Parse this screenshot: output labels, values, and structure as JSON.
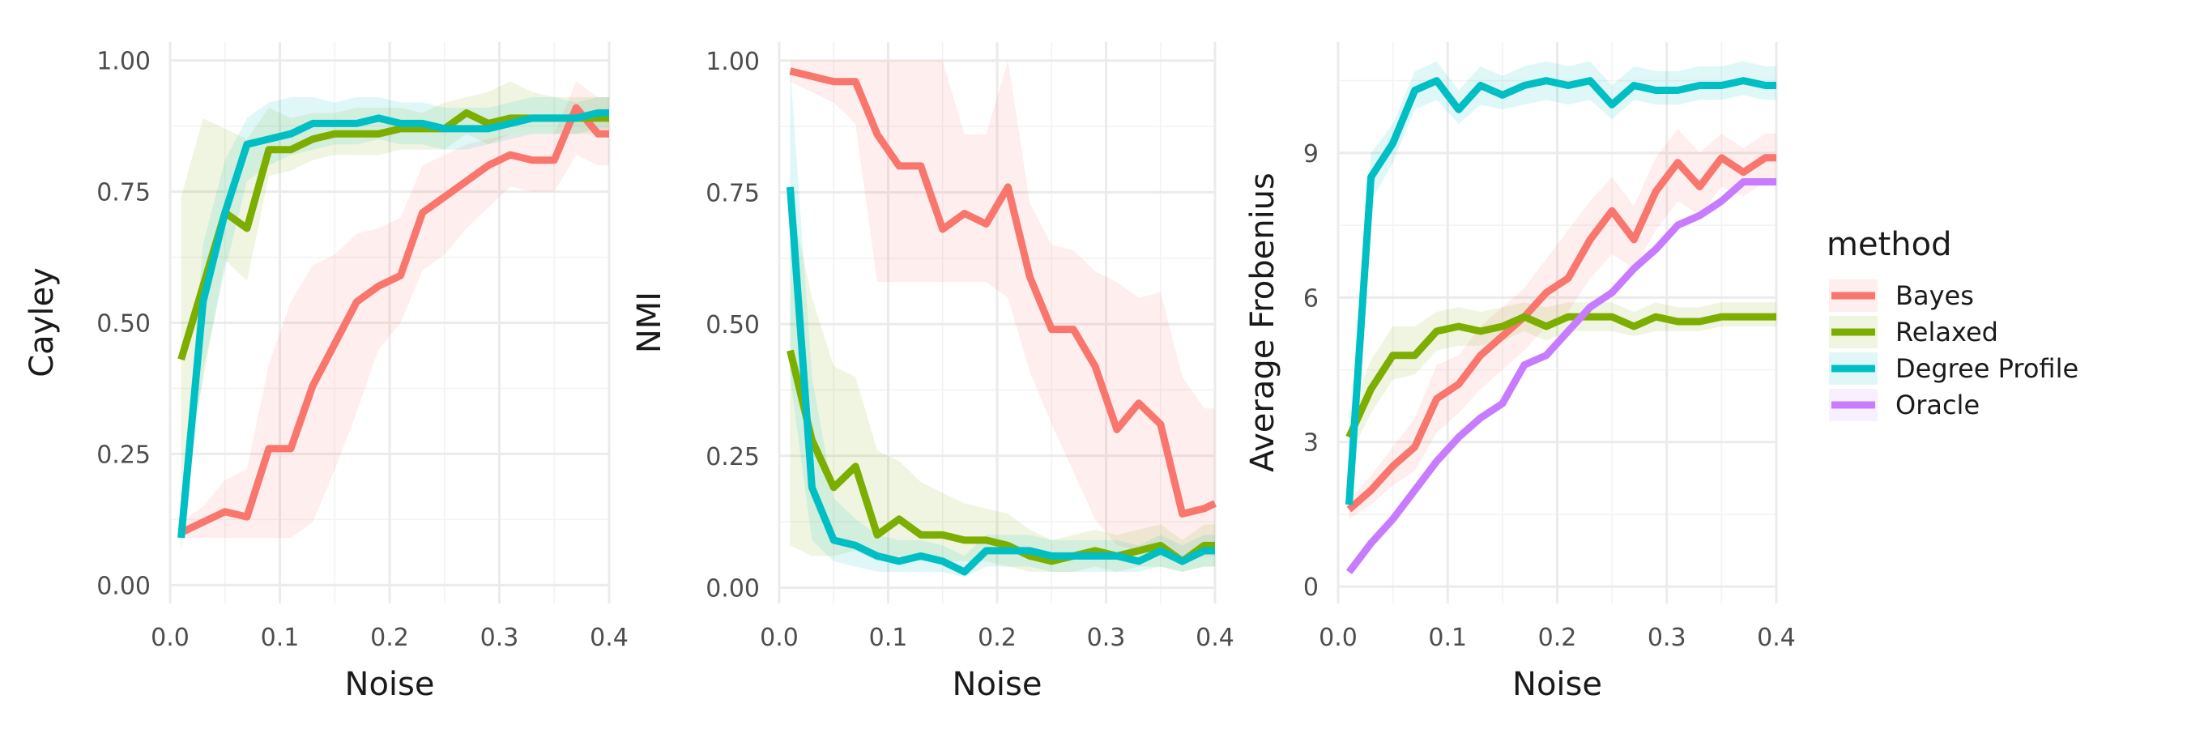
{
  "legend": {
    "title": "method",
    "entries": [
      {
        "name": "Bayes",
        "color": "#F8766D"
      },
      {
        "name": "Relaxed",
        "color": "#7CAE00"
      },
      {
        "name": "Degree Profile",
        "color": "#00BFC4"
      },
      {
        "name": "Oracle",
        "color": "#C77CFF"
      }
    ]
  },
  "chart_data": [
    {
      "type": "line",
      "title": "",
      "xlabel": "Noise",
      "ylabel": "Cayley",
      "xlim": [
        0,
        0.4
      ],
      "ylim": [
        -0.035,
        1.035
      ],
      "xticks": [
        0,
        0.1,
        0.2,
        0.3,
        0.4
      ],
      "xtick_labels": [
        "0.0",
        "0.1",
        "0.2",
        "0.3",
        "0.4"
      ],
      "yticks": [
        0,
        0.25,
        0.5,
        0.75,
        1.0
      ],
      "ytick_labels": [
        "0.00",
        "0.25",
        "0.50",
        "0.75",
        "1.00"
      ],
      "x": [
        0.01,
        0.03,
        0.05,
        0.07,
        0.09,
        0.11,
        0.13,
        0.15,
        0.17,
        0.19,
        0.21,
        0.23,
        0.25,
        0.27,
        0.29,
        0.31,
        0.33,
        0.35,
        0.37,
        0.39,
        0.4
      ],
      "series": [
        {
          "name": "Bayes",
          "color": "#F8766D",
          "values": [
            0.1,
            0.12,
            0.14,
            0.13,
            0.26,
            0.26,
            0.38,
            0.46,
            0.54,
            0.57,
            0.59,
            0.71,
            0.74,
            0.77,
            0.8,
            0.82,
            0.81,
            0.81,
            0.91,
            0.86,
            0.86
          ],
          "lower": [
            0.09,
            0.09,
            0.09,
            0.09,
            0.09,
            0.09,
            0.12,
            0.22,
            0.33,
            0.45,
            0.5,
            0.6,
            0.63,
            0.68,
            0.72,
            0.76,
            0.75,
            0.75,
            0.82,
            0.8,
            0.8
          ],
          "upper": [
            0.12,
            0.15,
            0.2,
            0.22,
            0.42,
            0.54,
            0.61,
            0.63,
            0.67,
            0.68,
            0.7,
            0.8,
            0.82,
            0.84,
            0.85,
            0.86,
            0.86,
            0.86,
            0.96,
            0.93,
            0.93
          ]
        },
        {
          "name": "Relaxed",
          "color": "#7CAE00",
          "values": [
            0.43,
            0.57,
            0.71,
            0.68,
            0.83,
            0.83,
            0.85,
            0.86,
            0.86,
            0.86,
            0.87,
            0.87,
            0.87,
            0.9,
            0.88,
            0.89,
            0.89,
            0.89,
            0.89,
            0.89,
            0.89
          ],
          "lower": [
            0.17,
            0.39,
            0.62,
            0.58,
            0.78,
            0.79,
            0.81,
            0.82,
            0.82,
            0.82,
            0.83,
            0.83,
            0.83,
            0.86,
            0.84,
            0.86,
            0.86,
            0.86,
            0.86,
            0.86,
            0.86
          ],
          "upper": [
            0.74,
            0.89,
            0.87,
            0.85,
            0.91,
            0.89,
            0.9,
            0.9,
            0.91,
            0.91,
            0.91,
            0.9,
            0.92,
            0.93,
            0.94,
            0.96,
            0.94,
            0.93,
            0.93,
            0.93,
            0.93
          ]
        },
        {
          "name": "Degree Profile",
          "color": "#00BFC4",
          "values": [
            0.09,
            0.54,
            0.71,
            0.84,
            0.85,
            0.86,
            0.88,
            0.88,
            0.88,
            0.89,
            0.88,
            0.88,
            0.87,
            0.87,
            0.87,
            0.88,
            0.89,
            0.89,
            0.89,
            0.9,
            0.9
          ],
          "lower": [
            0.06,
            0.41,
            0.6,
            0.77,
            0.8,
            0.82,
            0.83,
            0.84,
            0.84,
            0.85,
            0.84,
            0.84,
            0.83,
            0.83,
            0.84,
            0.85,
            0.86,
            0.86,
            0.86,
            0.87,
            0.87
          ],
          "upper": [
            0.14,
            0.65,
            0.81,
            0.89,
            0.92,
            0.93,
            0.93,
            0.92,
            0.93,
            0.93,
            0.92,
            0.92,
            0.91,
            0.91,
            0.91,
            0.92,
            0.93,
            0.93,
            0.92,
            0.93,
            0.93
          ]
        }
      ]
    },
    {
      "type": "line",
      "title": "",
      "xlabel": "Noise",
      "ylabel": "NMI",
      "xlim": [
        0,
        0.4
      ],
      "ylim": [
        -0.03,
        1.035
      ],
      "xticks": [
        0,
        0.1,
        0.2,
        0.3,
        0.4
      ],
      "xtick_labels": [
        "0.0",
        "0.1",
        "0.2",
        "0.3",
        "0.4"
      ],
      "yticks": [
        0,
        0.25,
        0.5,
        0.75,
        1.0
      ],
      "ytick_labels": [
        "0.00",
        "0.25",
        "0.50",
        "0.75",
        "1.00"
      ],
      "x": [
        0.01,
        0.03,
        0.05,
        0.07,
        0.09,
        0.11,
        0.13,
        0.15,
        0.17,
        0.19,
        0.21,
        0.23,
        0.25,
        0.27,
        0.29,
        0.31,
        0.33,
        0.35,
        0.37,
        0.39,
        0.4
      ],
      "series": [
        {
          "name": "Bayes",
          "color": "#F8766D",
          "values": [
            0.98,
            0.97,
            0.96,
            0.96,
            0.86,
            0.8,
            0.8,
            0.68,
            0.71,
            0.69,
            0.76,
            0.59,
            0.49,
            0.49,
            0.42,
            0.3,
            0.35,
            0.31,
            0.14,
            0.15,
            0.16
          ],
          "lower": [
            0.96,
            0.94,
            0.92,
            0.88,
            0.58,
            0.58,
            0.58,
            0.58,
            0.58,
            0.58,
            0.55,
            0.41,
            0.31,
            0.22,
            0.13,
            0.08,
            0.07,
            0.06,
            0.05,
            0.06,
            0.06
          ],
          "upper": [
            1.0,
            1.0,
            1.0,
            1.0,
            1.0,
            1.0,
            1.0,
            1.0,
            0.86,
            0.86,
            1.0,
            0.73,
            0.65,
            0.64,
            0.6,
            0.58,
            0.55,
            0.56,
            0.4,
            0.34,
            0.34
          ]
        },
        {
          "name": "Relaxed",
          "color": "#7CAE00",
          "values": [
            0.45,
            0.28,
            0.19,
            0.23,
            0.1,
            0.13,
            0.1,
            0.1,
            0.09,
            0.09,
            0.08,
            0.06,
            0.05,
            0.06,
            0.07,
            0.06,
            0.07,
            0.08,
            0.05,
            0.08,
            0.08
          ],
          "lower": [
            0.08,
            0.06,
            0.06,
            0.07,
            0.05,
            0.06,
            0.05,
            0.05,
            0.05,
            0.05,
            0.04,
            0.03,
            0.03,
            0.03,
            0.04,
            0.03,
            0.04,
            0.04,
            0.03,
            0.04,
            0.04
          ],
          "upper": [
            0.74,
            0.55,
            0.42,
            0.4,
            0.26,
            0.24,
            0.2,
            0.18,
            0.16,
            0.15,
            0.14,
            0.11,
            0.09,
            0.1,
            0.11,
            0.1,
            0.11,
            0.12,
            0.09,
            0.12,
            0.12
          ]
        },
        {
          "name": "Degree Profile",
          "color": "#00BFC4",
          "values": [
            0.76,
            0.19,
            0.09,
            0.08,
            0.06,
            0.05,
            0.06,
            0.05,
            0.03,
            0.07,
            0.07,
            0.07,
            0.06,
            0.06,
            0.06,
            0.06,
            0.05,
            0.07,
            0.05,
            0.07,
            0.07
          ],
          "lower": [
            0.4,
            0.09,
            0.05,
            0.04,
            0.03,
            0.03,
            0.03,
            0.03,
            0.02,
            0.04,
            0.04,
            0.04,
            0.03,
            0.03,
            0.03,
            0.03,
            0.03,
            0.04,
            0.03,
            0.04,
            0.04
          ],
          "upper": [
            0.99,
            0.4,
            0.17,
            0.13,
            0.1,
            0.09,
            0.09,
            0.08,
            0.06,
            0.1,
            0.1,
            0.1,
            0.09,
            0.09,
            0.09,
            0.09,
            0.08,
            0.1,
            0.08,
            0.1,
            0.1
          ]
        }
      ]
    },
    {
      "type": "line",
      "title": "",
      "xlabel": "Noise",
      "ylabel": "Average Frobenius",
      "xlim": [
        0,
        0.4
      ],
      "ylim": [
        -0.35,
        11.3
      ],
      "xticks": [
        0,
        0.1,
        0.2,
        0.3,
        0.4
      ],
      "xtick_labels": [
        "0.0",
        "0.1",
        "0.2",
        "0.3",
        "0.4"
      ],
      "yticks": [
        0,
        3,
        6,
        9
      ],
      "ytick_labels": [
        "0",
        "3",
        "6",
        "9"
      ],
      "x": [
        0.01,
        0.03,
        0.05,
        0.07,
        0.09,
        0.11,
        0.13,
        0.15,
        0.17,
        0.19,
        0.21,
        0.23,
        0.25,
        0.27,
        0.29,
        0.31,
        0.33,
        0.35,
        0.37,
        0.39,
        0.4
      ],
      "series": [
        {
          "name": "Bayes",
          "color": "#F8766D",
          "values": [
            1.6,
            2.0,
            2.5,
            2.9,
            3.9,
            4.2,
            4.8,
            5.2,
            5.6,
            6.1,
            6.4,
            7.2,
            7.8,
            7.2,
            8.2,
            8.8,
            8.3,
            8.9,
            8.6,
            8.9,
            8.9
          ],
          "lower": [
            1.4,
            1.7,
            2.1,
            2.4,
            3.2,
            3.6,
            4.1,
            4.5,
            4.9,
            5.4,
            5.7,
            6.4,
            6.9,
            6.6,
            7.4,
            8.0,
            7.7,
            8.3,
            8.1,
            8.4,
            8.4
          ],
          "upper": [
            1.8,
            2.3,
            2.9,
            3.5,
            4.6,
            4.8,
            5.4,
            5.8,
            6.2,
            6.8,
            7.4,
            8.0,
            8.5,
            7.9,
            8.9,
            9.5,
            9.0,
            9.4,
            9.1,
            9.4,
            9.4
          ]
        },
        {
          "name": "Relaxed",
          "color": "#7CAE00",
          "values": [
            3.1,
            4.1,
            4.8,
            4.8,
            5.3,
            5.4,
            5.3,
            5.4,
            5.6,
            5.4,
            5.6,
            5.6,
            5.6,
            5.4,
            5.6,
            5.5,
            5.5,
            5.6,
            5.6,
            5.6,
            5.6
          ],
          "lower": [
            2.7,
            3.6,
            4.3,
            4.4,
            4.9,
            5.0,
            5.0,
            5.1,
            5.3,
            5.1,
            5.3,
            5.3,
            5.3,
            5.2,
            5.3,
            5.3,
            5.3,
            5.4,
            5.4,
            5.4,
            5.4
          ],
          "upper": [
            3.6,
            4.7,
            5.4,
            5.4,
            5.7,
            5.8,
            5.7,
            5.8,
            5.9,
            5.8,
            5.9,
            5.9,
            5.9,
            5.7,
            5.9,
            5.8,
            5.8,
            5.9,
            5.9,
            5.9,
            5.9
          ]
        },
        {
          "name": "Degree Profile",
          "color": "#00BFC4",
          "values": [
            1.7,
            8.5,
            9.2,
            10.3,
            10.5,
            9.9,
            10.4,
            10.2,
            10.4,
            10.5,
            10.4,
            10.5,
            10.0,
            10.4,
            10.3,
            10.3,
            10.4,
            10.4,
            10.5,
            10.4,
            10.4
          ],
          "lower": [
            1.5,
            8.0,
            8.8,
            9.9,
            10.1,
            9.6,
            10.0,
            9.9,
            10.0,
            10.1,
            10.0,
            10.1,
            9.7,
            10.1,
            10.0,
            10.0,
            10.1,
            10.1,
            10.2,
            10.1,
            10.1
          ],
          "upper": [
            2.0,
            9.0,
            9.6,
            10.7,
            10.9,
            10.3,
            10.8,
            10.6,
            10.8,
            10.9,
            10.8,
            10.9,
            10.4,
            10.8,
            10.7,
            10.7,
            10.8,
            10.8,
            10.9,
            10.8,
            10.8
          ]
        },
        {
          "name": "Oracle",
          "color": "#C77CFF",
          "values": [
            0.3,
            0.9,
            1.4,
            2.0,
            2.6,
            3.1,
            3.5,
            3.8,
            4.6,
            4.8,
            5.3,
            5.8,
            6.1,
            6.6,
            7.0,
            7.5,
            7.7,
            8.0,
            8.4,
            8.4,
            8.4
          ],
          "lower": [
            0.3,
            0.9,
            1.4,
            2.0,
            2.6,
            3.1,
            3.5,
            3.8,
            4.6,
            4.8,
            5.3,
            5.8,
            6.1,
            6.6,
            7.0,
            7.5,
            7.7,
            8.0,
            8.4,
            8.4,
            8.4
          ],
          "upper": [
            0.3,
            0.9,
            1.4,
            2.0,
            2.6,
            3.1,
            3.5,
            3.8,
            4.6,
            4.8,
            5.3,
            5.8,
            6.1,
            6.6,
            7.0,
            7.5,
            7.7,
            8.0,
            8.4,
            8.4,
            8.4
          ]
        }
      ]
    }
  ]
}
